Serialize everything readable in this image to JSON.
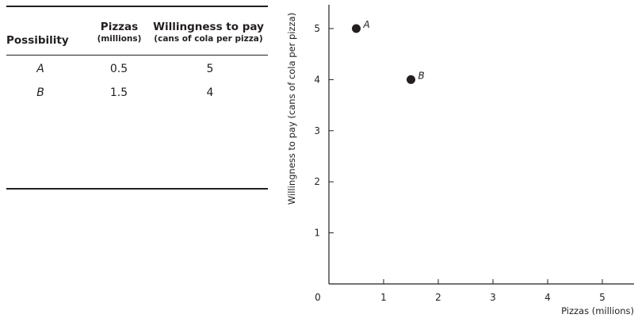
{
  "table": {
    "headers": {
      "possibility": "Possibility",
      "pizzas": "Pizzas",
      "pizzas_unit": "(millions)",
      "wtp": "Willingness to pay",
      "wtp_unit": "(cans of cola per pizza)"
    },
    "rows": [
      {
        "possibility": "A",
        "pizzas": "0.5",
        "wtp": "5"
      },
      {
        "possibility": "B",
        "pizzas": "1.5",
        "wtp": "4"
      }
    ]
  },
  "chart_data": {
    "type": "scatter",
    "title": "",
    "xlabel": "Pizzas (millions)",
    "ylabel": "Willingness to pay (cans of cola per pizza)",
    "xlim": [
      0,
      5.6
    ],
    "ylim": [
      0,
      5.5
    ],
    "xticks": [
      "1",
      "2",
      "3",
      "4",
      "5"
    ],
    "yticks": [
      "1",
      "2",
      "3",
      "4",
      "5"
    ],
    "origin_label": "0",
    "grid": false,
    "points": [
      {
        "label": "A",
        "x": 0.5,
        "y": 5
      },
      {
        "label": "B",
        "x": 1.5,
        "y": 4
      }
    ]
  }
}
